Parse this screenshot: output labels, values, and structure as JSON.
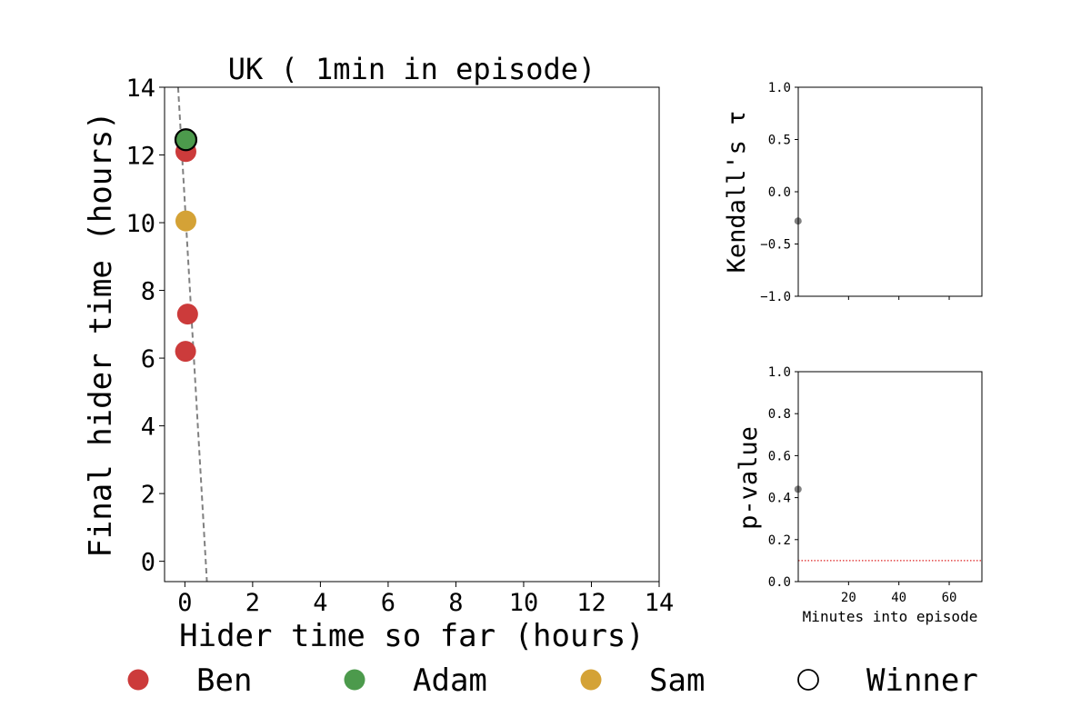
{
  "chart_data": [
    {
      "type": "scatter",
      "title": "UK ( 1min in episode)",
      "xlabel": "Hider time so far (hours)",
      "ylabel": "Final hider time (hours)",
      "xlim": [
        -0.6,
        14
      ],
      "ylim": [
        -0.6,
        14
      ],
      "xticks": [
        0,
        2,
        4,
        6,
        8,
        10,
        12,
        14
      ],
      "yticks": [
        0,
        2,
        4,
        6,
        8,
        10,
        12,
        14
      ],
      "grid": false,
      "trend_line": {
        "style": "dashed",
        "color": "#808080",
        "points": [
          [
            -0.2,
            14
          ],
          [
            0.65,
            -0.6
          ]
        ]
      },
      "points": [
        {
          "player": "Ben",
          "x": 0.03,
          "y": 12.1,
          "winner": false
        },
        {
          "player": "Sam",
          "x": 0.03,
          "y": 10.05,
          "winner": false
        },
        {
          "player": "Ben",
          "x": 0.08,
          "y": 7.3,
          "winner": false
        },
        {
          "player": "Ben",
          "x": 0.02,
          "y": 6.2,
          "winner": false
        },
        {
          "player": "Adam",
          "x": 0.03,
          "y": 12.45,
          "winner": true
        }
      ]
    },
    {
      "type": "scatter",
      "title": "",
      "xlabel": "",
      "ylabel": "Kendall's τ",
      "xlim": [
        0,
        73
      ],
      "ylim": [
        -1,
        1
      ],
      "xticks": [
        20,
        40,
        60
      ],
      "yticks": [
        -1.0,
        -0.5,
        0.0,
        0.5,
        1.0
      ],
      "ytick_labels": [
        "−1.0",
        "−0.5",
        "0.0",
        "0.5",
        "1.0"
      ],
      "show_xtick_labels": false,
      "points": [
        {
          "x": 1,
          "y": -0.28
        }
      ]
    },
    {
      "type": "scatter",
      "title": "",
      "xlabel": "Minutes into episode",
      "ylabel": "p-value",
      "xlim": [
        0,
        73
      ],
      "ylim": [
        0,
        1
      ],
      "xticks": [
        20,
        40,
        60
      ],
      "yticks": [
        0.0,
        0.2,
        0.4,
        0.6,
        0.8,
        1.0
      ],
      "ytick_labels": [
        "0.0",
        "0.2",
        "0.4",
        "0.6",
        "0.8",
        "1.0"
      ],
      "show_xtick_labels": true,
      "threshold_line": {
        "y": 0.1,
        "style": "dotted",
        "color": "#dd2222"
      },
      "points": [
        {
          "x": 1,
          "y": 0.44
        }
      ]
    }
  ],
  "legend": {
    "placement": "bottom",
    "items": [
      {
        "label": "Ben",
        "color": "#cc3b3b",
        "marker": "filled-circle"
      },
      {
        "label": "Adam",
        "color": "#4c9a4c",
        "marker": "filled-circle"
      },
      {
        "label": "Sam",
        "color": "#d4a236",
        "marker": "filled-circle"
      },
      {
        "label": "Winner",
        "color": "#000000",
        "marker": "open-circle"
      }
    ]
  },
  "colors": {
    "Ben": "#cc3b3b",
    "Adam": "#4c9a4c",
    "Sam": "#d4a236",
    "secondary_points": "#808080"
  }
}
